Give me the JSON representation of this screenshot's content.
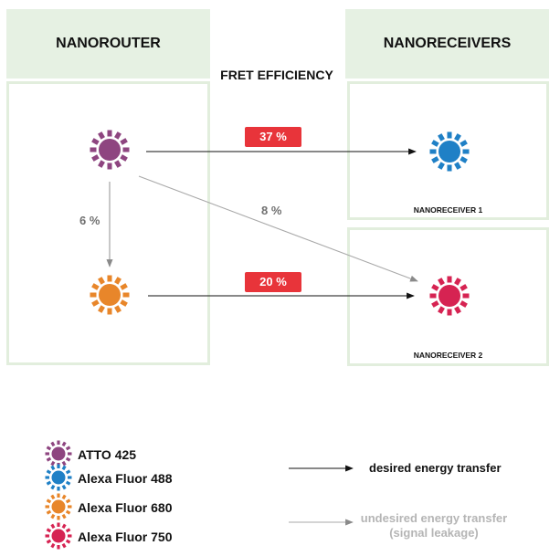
{
  "headers": {
    "router": "NANOROUTER",
    "receivers": "NANORECEIVERS"
  },
  "fret_title": "FRET EFFICIENCY",
  "receiver_labels": {
    "rx1": "NANORECEIVER 1",
    "rx2": "NANORECEIVER 2"
  },
  "efficiencies": {
    "atto_to_488": "37 %",
    "680_to_750": "20 %",
    "atto_to_680": "6 %",
    "atto_to_750": "8 %"
  },
  "legend": {
    "dyes": [
      {
        "label": "ATTO 425",
        "color": "#8e4580"
      },
      {
        "label": "Alexa Fluor 488",
        "color": "#1f80c6"
      },
      {
        "label": "Alexa Fluor 680",
        "color": "#e8862a"
      },
      {
        "label": "Alexa Fluor 750",
        "color": "#d62352"
      }
    ],
    "desired": "desired energy transfer",
    "undesired_line1": "undesired energy transfer",
    "undesired_line2": "(signal leakage)"
  },
  "colors": {
    "desired_arrow": "#111111",
    "undesired_arrow": "#a8a8a8",
    "badge": "#e8343a",
    "panel_header": "#e6f1e3"
  }
}
